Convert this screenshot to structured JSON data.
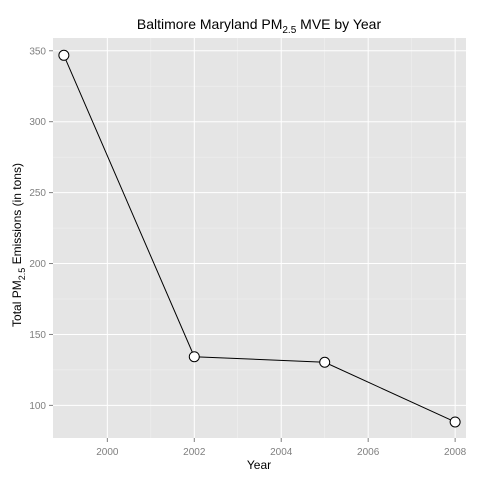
{
  "chart_data": {
    "type": "line",
    "title": {
      "pre": "Baltimore Maryland PM",
      "sub": "2.5",
      "post": " MVE by Year"
    },
    "xlabel": "Year",
    "ylabel": {
      "pre": "Total PM",
      "sub": "2.5",
      "post": " Emissions (in tons)"
    },
    "x": [
      1999,
      2002,
      2005,
      2008
    ],
    "y": [
      346.8,
      134.3,
      130.4,
      88.3
    ],
    "xlim": [
      1998.75,
      2008.25
    ],
    "ylim": [
      77,
      359
    ],
    "x_ticks": [
      2000,
      2002,
      2004,
      2006,
      2008
    ],
    "y_ticks": [
      100,
      150,
      200,
      250,
      300,
      350
    ],
    "x_tick_labels": [
      "2000",
      "2002",
      "2004",
      "2006",
      "2008"
    ],
    "y_tick_labels": [
      "100",
      "150",
      "200",
      "250",
      "300",
      "350"
    ],
    "grid": true,
    "legend": "none",
    "colors": {
      "panel_background": "#e5e5e5",
      "grid_major": "#ffffff",
      "grid_minor": "#f2f2f2",
      "line": "#000000",
      "point_fill": "#ffffff",
      "point_stroke": "#000000",
      "tick_text": "#7f7f7f"
    }
  }
}
